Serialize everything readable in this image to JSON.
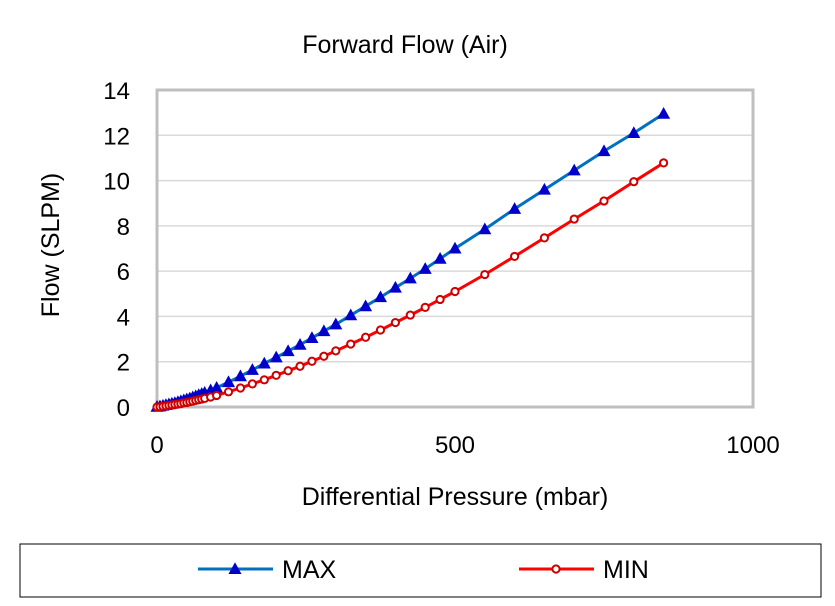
{
  "chart_data": {
    "type": "line",
    "title": "Forward Flow (Air)",
    "xlabel": "Differential Pressure (mbar)",
    "ylabel": "Flow (SLPM)",
    "xlim": [
      0,
      1000
    ],
    "ylim": [
      0,
      14
    ],
    "x_ticks": [
      "0",
      "500",
      "1000"
    ],
    "y_ticks": [
      "0",
      "2",
      "4",
      "6",
      "8",
      "10",
      "12",
      "14"
    ],
    "grid": "horizontal",
    "legend_position": "bottom",
    "series": [
      {
        "name": "MAX",
        "color": "#0070C0",
        "marker_color": "#0000CC",
        "marker": "triangle",
        "x": [
          0,
          5,
          10,
          15,
          20,
          25,
          30,
          35,
          40,
          45,
          50,
          55,
          60,
          65,
          70,
          75,
          80,
          90,
          100,
          120,
          140,
          160,
          180,
          200,
          220,
          240,
          260,
          280,
          300,
          325,
          350,
          375,
          400,
          425,
          450,
          475,
          500,
          550,
          600,
          650,
          700,
          750,
          800,
          850
        ],
        "y": [
          0.01,
          0.03,
          0.06,
          0.09,
          0.12,
          0.15,
          0.18,
          0.22,
          0.26,
          0.3,
          0.34,
          0.38,
          0.43,
          0.48,
          0.53,
          0.58,
          0.63,
          0.74,
          0.85,
          1.1,
          1.36,
          1.64,
          1.92,
          2.19,
          2.47,
          2.75,
          3.05,
          3.35,
          3.65,
          4.05,
          4.45,
          4.85,
          5.27,
          5.68,
          6.1,
          6.55,
          7.0,
          7.85,
          8.75,
          9.6,
          10.45,
          11.3,
          12.1,
          12.95
        ]
      },
      {
        "name": "MIN",
        "color": "#FF0000",
        "marker_color": "#CC0000",
        "marker": "circle",
        "x": [
          0,
          5,
          10,
          15,
          20,
          25,
          30,
          35,
          40,
          45,
          50,
          55,
          60,
          65,
          70,
          75,
          80,
          90,
          100,
          120,
          140,
          160,
          180,
          200,
          220,
          240,
          260,
          280,
          300,
          325,
          350,
          375,
          400,
          425,
          450,
          475,
          500,
          550,
          600,
          650,
          700,
          750,
          800,
          850
        ],
        "y": [
          0.0,
          0.01,
          0.03,
          0.05,
          0.07,
          0.09,
          0.11,
          0.13,
          0.15,
          0.18,
          0.2,
          0.23,
          0.26,
          0.29,
          0.32,
          0.35,
          0.38,
          0.44,
          0.51,
          0.67,
          0.84,
          1.02,
          1.2,
          1.4,
          1.6,
          1.8,
          2.02,
          2.24,
          2.48,
          2.78,
          3.08,
          3.4,
          3.73,
          4.06,
          4.4,
          4.75,
          5.1,
          5.85,
          6.65,
          7.47,
          8.3,
          9.1,
          9.95,
          10.78
        ]
      }
    ]
  }
}
